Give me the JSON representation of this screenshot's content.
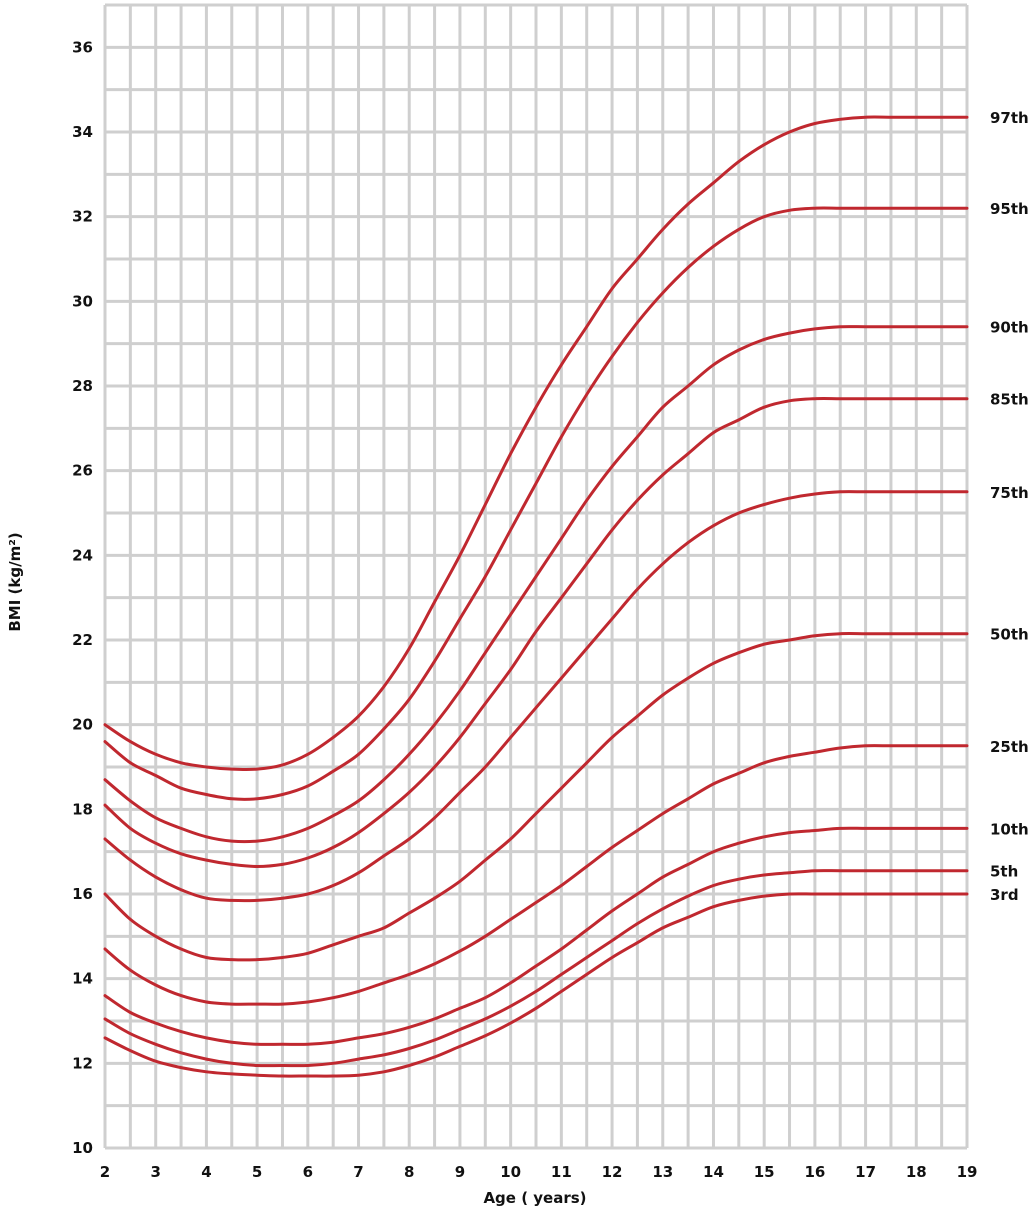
{
  "chart_data": {
    "type": "line",
    "title": "",
    "xlabel": "Age ( years)",
    "ylabel": "BMI (kg/m²)",
    "xlim": [
      2,
      19
    ],
    "ylim": [
      10,
      37
    ],
    "x_ticks": [
      "2",
      "3",
      "4",
      "5",
      "6",
      "7",
      "8",
      "9",
      "10",
      "11",
      "12",
      "13",
      "14",
      "15",
      "16",
      "17",
      "18",
      "19"
    ],
    "y_ticks": [
      "10",
      "12",
      "14",
      "16",
      "18",
      "20",
      "22",
      "24",
      "26",
      "28",
      "30",
      "32",
      "34",
      "36"
    ],
    "grid": true,
    "legend": "right-edge labels",
    "line_color": "#c0282f",
    "x": [
      2,
      2.5,
      3,
      3.5,
      4,
      4.5,
      5,
      5.5,
      6,
      6.5,
      7,
      7.5,
      8,
      8.5,
      9,
      9.5,
      10,
      10.5,
      11,
      11.5,
      12,
      12.5,
      13,
      13.5,
      14,
      14.5,
      15,
      15.5,
      16,
      16.5,
      17,
      17.5,
      18,
      18.5,
      19
    ],
    "series": [
      {
        "name": "97th",
        "values": [
          20.0,
          19.6,
          19.3,
          19.1,
          19.0,
          18.95,
          18.95,
          19.05,
          19.3,
          19.7,
          20.2,
          20.9,
          21.8,
          22.9,
          24.0,
          25.2,
          26.4,
          27.5,
          28.5,
          29.4,
          30.3,
          31.0,
          31.7,
          32.3,
          32.8,
          33.3,
          33.7,
          34.0,
          34.2,
          34.3,
          34.35,
          34.35,
          34.35,
          34.35,
          34.35
        ]
      },
      {
        "name": "95th",
        "values": [
          19.6,
          19.1,
          18.8,
          18.5,
          18.35,
          18.25,
          18.25,
          18.35,
          18.55,
          18.9,
          19.3,
          19.9,
          20.6,
          21.5,
          22.5,
          23.5,
          24.6,
          25.7,
          26.8,
          27.8,
          28.7,
          29.5,
          30.2,
          30.8,
          31.3,
          31.7,
          32.0,
          32.15,
          32.2,
          32.2,
          32.2,
          32.2,
          32.2,
          32.2,
          32.2
        ]
      },
      {
        "name": "90th",
        "values": [
          18.7,
          18.2,
          17.8,
          17.55,
          17.35,
          17.25,
          17.25,
          17.35,
          17.55,
          17.85,
          18.2,
          18.7,
          19.3,
          20.0,
          20.8,
          21.7,
          22.6,
          23.5,
          24.4,
          25.3,
          26.1,
          26.8,
          27.5,
          28.0,
          28.5,
          28.85,
          29.1,
          29.25,
          29.35,
          29.4,
          29.4,
          29.4,
          29.4,
          29.4,
          29.4
        ]
      },
      {
        "name": "85th",
        "values": [
          18.1,
          17.55,
          17.2,
          16.95,
          16.8,
          16.7,
          16.65,
          16.7,
          16.85,
          17.1,
          17.45,
          17.9,
          18.4,
          19.0,
          19.7,
          20.5,
          21.3,
          22.2,
          23.0,
          23.8,
          24.6,
          25.3,
          25.9,
          26.4,
          26.9,
          27.2,
          27.5,
          27.65,
          27.7,
          27.7,
          27.7,
          27.7,
          27.7,
          27.7,
          27.7
        ]
      },
      {
        "name": "75th",
        "values": [
          17.3,
          16.8,
          16.4,
          16.1,
          15.9,
          15.85,
          15.85,
          15.9,
          16.0,
          16.2,
          16.5,
          16.9,
          17.3,
          17.8,
          18.4,
          19.0,
          19.7,
          20.4,
          21.1,
          21.8,
          22.5,
          23.2,
          23.8,
          24.3,
          24.7,
          25.0,
          25.2,
          25.35,
          25.45,
          25.5,
          25.5,
          25.5,
          25.5,
          25.5,
          25.5
        ]
      },
      {
        "name": "50th",
        "values": [
          16.0,
          15.4,
          15.0,
          14.7,
          14.5,
          14.45,
          14.45,
          14.5,
          14.6,
          14.8,
          15.0,
          15.2,
          15.55,
          15.9,
          16.3,
          16.8,
          17.3,
          17.9,
          18.5,
          19.1,
          19.7,
          20.2,
          20.7,
          21.1,
          21.45,
          21.7,
          21.9,
          22.0,
          22.1,
          22.15,
          22.15,
          22.15,
          22.15,
          22.15,
          22.15
        ]
      },
      {
        "name": "25th",
        "values": [
          14.7,
          14.2,
          13.85,
          13.6,
          13.45,
          13.4,
          13.4,
          13.4,
          13.45,
          13.55,
          13.7,
          13.9,
          14.1,
          14.35,
          14.65,
          15.0,
          15.4,
          15.8,
          16.2,
          16.65,
          17.1,
          17.5,
          17.9,
          18.25,
          18.6,
          18.85,
          19.1,
          19.25,
          19.35,
          19.45,
          19.5,
          19.5,
          19.5,
          19.5,
          19.5
        ]
      },
      {
        "name": "10th",
        "values": [
          13.6,
          13.2,
          12.95,
          12.75,
          12.6,
          12.5,
          12.45,
          12.45,
          12.45,
          12.5,
          12.6,
          12.7,
          12.85,
          13.05,
          13.3,
          13.55,
          13.9,
          14.3,
          14.7,
          15.15,
          15.6,
          16.0,
          16.4,
          16.7,
          17.0,
          17.2,
          17.35,
          17.45,
          17.5,
          17.55,
          17.55,
          17.55,
          17.55,
          17.55,
          17.55
        ]
      },
      {
        "name": "5th",
        "values": [
          13.05,
          12.7,
          12.45,
          12.25,
          12.1,
          12.0,
          11.95,
          11.95,
          11.95,
          12.0,
          12.1,
          12.2,
          12.35,
          12.55,
          12.8,
          13.05,
          13.35,
          13.7,
          14.1,
          14.5,
          14.9,
          15.3,
          15.65,
          15.95,
          16.2,
          16.35,
          16.45,
          16.5,
          16.55,
          16.55,
          16.55,
          16.55,
          16.55,
          16.55,
          16.55
        ]
      },
      {
        "name": "3rd",
        "values": [
          12.6,
          12.3,
          12.05,
          11.9,
          11.8,
          11.75,
          11.72,
          11.7,
          11.7,
          11.7,
          11.72,
          11.8,
          11.95,
          12.15,
          12.4,
          12.65,
          12.95,
          13.3,
          13.7,
          14.1,
          14.5,
          14.85,
          15.2,
          15.45,
          15.7,
          15.85,
          15.95,
          16.0,
          16.0,
          16.0,
          16.0,
          16.0,
          16.0,
          16.0,
          16.0
        ]
      }
    ]
  }
}
